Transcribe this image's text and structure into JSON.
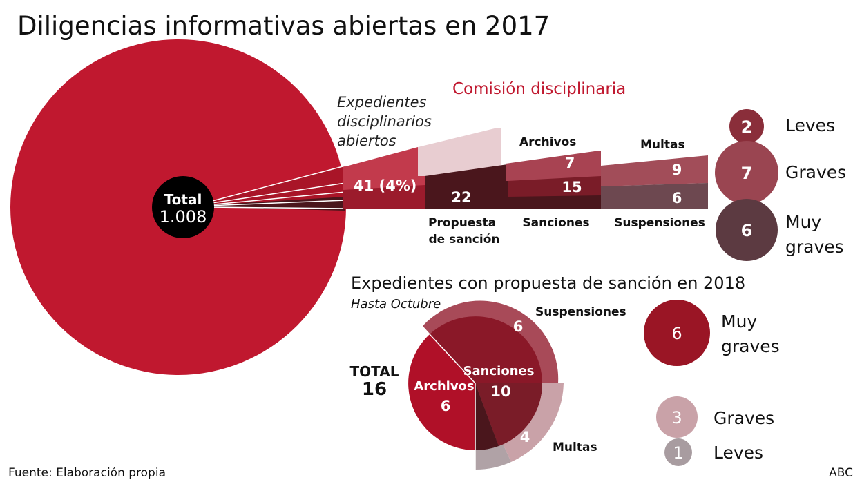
{
  "title": "Diligencias informativas abiertas en 2017",
  "source": "Fuente: Elaboración propia",
  "brand": "ABC",
  "colors": {
    "main": "#c0182f",
    "dark": "#4a161c",
    "accent_text": "#c0182f"
  },
  "chart_data": [
    {
      "type": "pie",
      "title": "Diligencias informativas abiertas en 2017",
      "total_label": "Total",
      "total_value": "1.008",
      "total": 1008,
      "expedientes_label_lines": [
        "Expedientes",
        "disciplinarios",
        "abiertos"
      ],
      "expedientes_value": "41 (4%)",
      "expedientes": 41,
      "expedientes_pct": 4
    },
    {
      "type": "bar",
      "title": "Comisión disciplinaria",
      "categories": [
        "Propuesta de sanción",
        "Archivos",
        "Sanciones",
        "Multas",
        "Suspensiones"
      ],
      "propuesta_label_lines": [
        "Propuesta",
        "de sanción"
      ],
      "values": {
        "propuesta": "22",
        "archivos": "7",
        "sanciones": "15",
        "multas": "9",
        "suspensiones": "6"
      },
      "labels": {
        "archivos": "Archivos",
        "sanciones": "Sanciones",
        "multas": "Multas",
        "suspensiones": "Suspensiones"
      },
      "severity": [
        {
          "label": "Leves",
          "value": "2"
        },
        {
          "label": "Graves",
          "value": "7"
        },
        {
          "label_lines": [
            "Muy",
            "graves"
          ],
          "value": "6"
        }
      ]
    },
    {
      "type": "pie",
      "title": "Expedientes con propuesta de sanción en 2018",
      "subtitle": "Hasta Octubre",
      "total_label": "TOTAL",
      "total_value": "16",
      "slices": [
        {
          "label": "Archivos",
          "value": "6"
        },
        {
          "label": "Sanciones",
          "value": "10"
        }
      ],
      "outer": [
        {
          "label": "Suspensiones",
          "value": "6"
        },
        {
          "label": "Multas",
          "value": "4"
        }
      ],
      "severity": [
        {
          "label_lines": [
            "Muy",
            "graves"
          ],
          "value": "6"
        },
        {
          "label": "Graves",
          "value": "3"
        },
        {
          "label": "Leves",
          "value": "1"
        }
      ]
    }
  ]
}
